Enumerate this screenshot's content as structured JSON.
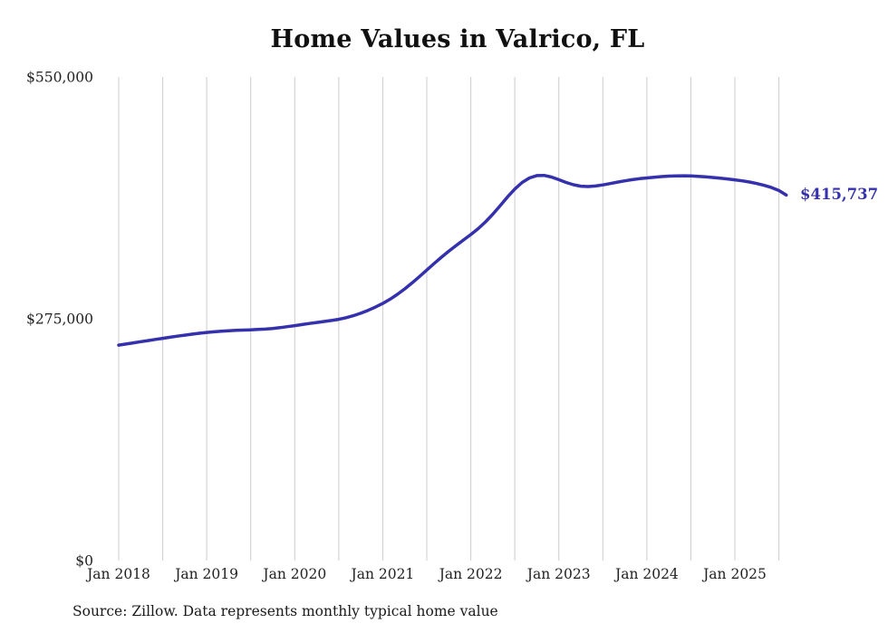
{
  "title": "Home Values in Valrico, FL",
  "end_label": "$415,737",
  "source_note": "Source: Zillow. Data represents monthly typical home value",
  "colors": {
    "line": "#3530ab",
    "grid": "#cccccc",
    "axis_text": "#222222",
    "title_text": "#111111",
    "end_label_text": "#3530ab",
    "background": "#ffffff"
  },
  "chart_data": {
    "type": "line",
    "title": "Home Values in Valrico, FL",
    "xlabel": "",
    "ylabel": "",
    "ylim": [
      0,
      550000
    ],
    "grid": "vertical-only, every 6 months",
    "legend": "none",
    "yticks": [
      {
        "value": 0,
        "label": "$0"
      },
      {
        "value": 275000,
        "label": "$275,000"
      },
      {
        "value": 550000,
        "label": "$550,000"
      }
    ],
    "xticks": [
      "Jan 2018",
      "Jan 2019",
      "Jan 2020",
      "Jan 2021",
      "Jan 2022",
      "Jan 2023",
      "Jan 2024",
      "Jan 2025"
    ],
    "frequency": "monthly",
    "x_start": "2018-01",
    "x_end": "2025-08",
    "months": [
      "2018-01",
      "2018-02",
      "2018-03",
      "2018-04",
      "2018-05",
      "2018-06",
      "2018-07",
      "2018-08",
      "2018-09",
      "2018-10",
      "2018-11",
      "2018-12",
      "2019-01",
      "2019-02",
      "2019-03",
      "2019-04",
      "2019-05",
      "2019-06",
      "2019-07",
      "2019-08",
      "2019-09",
      "2019-10",
      "2019-11",
      "2019-12",
      "2020-01",
      "2020-02",
      "2020-03",
      "2020-04",
      "2020-05",
      "2020-06",
      "2020-07",
      "2020-08",
      "2020-09",
      "2020-10",
      "2020-11",
      "2020-12",
      "2021-01",
      "2021-02",
      "2021-03",
      "2021-04",
      "2021-05",
      "2021-06",
      "2021-07",
      "2021-08",
      "2021-09",
      "2021-10",
      "2021-11",
      "2021-12",
      "2022-01",
      "2022-02",
      "2022-03",
      "2022-04",
      "2022-05",
      "2022-06",
      "2022-07",
      "2022-08",
      "2022-09",
      "2022-10",
      "2022-11",
      "2022-12",
      "2023-01",
      "2023-02",
      "2023-03",
      "2023-04",
      "2023-05",
      "2023-06",
      "2023-07",
      "2023-08",
      "2023-09",
      "2023-10",
      "2023-11",
      "2023-12",
      "2024-01",
      "2024-02",
      "2024-03",
      "2024-04",
      "2024-05",
      "2024-06",
      "2024-07",
      "2024-08",
      "2024-09",
      "2024-10",
      "2024-11",
      "2024-12",
      "2025-01",
      "2025-02",
      "2025-03",
      "2025-04",
      "2025-05",
      "2025-06",
      "2025-07",
      "2025-08"
    ],
    "series": [
      {
        "name": "Typical home value",
        "color": "#3530ab",
        "values": [
          245000,
          246300,
          247600,
          248900,
          250200,
          251500,
          252800,
          254000,
          255200,
          256400,
          257500,
          258500,
          259400,
          260200,
          260900,
          261400,
          261800,
          262100,
          262400,
          262800,
          263300,
          264000,
          264900,
          266000,
          267200,
          268400,
          269600,
          270800,
          271900,
          273000,
          274400,
          276200,
          278500,
          281300,
          284600,
          288300,
          292400,
          297200,
          302800,
          309000,
          315800,
          323000,
          330400,
          337800,
          345000,
          351800,
          358300,
          364600,
          370800,
          377500,
          385200,
          394000,
          403600,
          413400,
          422500,
          430000,
          435200,
          437800,
          438000,
          436200,
          433200,
          430000,
          427400,
          425800,
          425400,
          426000,
          427200,
          428800,
          430400,
          431900,
          433200,
          434300,
          435200,
          436000,
          436700,
          437200,
          437500,
          437600,
          437400,
          437000,
          436400,
          435700,
          434900,
          434000,
          433000,
          431900,
          430500,
          428800,
          426700,
          424200,
          420800,
          415737
        ]
      }
    ],
    "final_value": 415737,
    "final_value_label": "$415,737"
  }
}
